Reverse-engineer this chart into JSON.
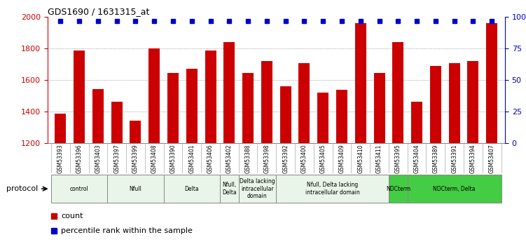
{
  "title": "GDS1690 / 1631315_at",
  "samples": [
    "GSM53393",
    "GSM53396",
    "GSM53403",
    "GSM53397",
    "GSM53399",
    "GSM53408",
    "GSM53390",
    "GSM53401",
    "GSM53406",
    "GSM53402",
    "GSM53388",
    "GSM53398",
    "GSM53392",
    "GSM53400",
    "GSM53405",
    "GSM53409",
    "GSM53410",
    "GSM53411",
    "GSM53395",
    "GSM53404",
    "GSM53389",
    "GSM53391",
    "GSM53394",
    "GSM53407"
  ],
  "counts": [
    1385,
    1785,
    1540,
    1460,
    1340,
    1800,
    1645,
    1670,
    1785,
    1840,
    1645,
    1720,
    1560,
    1705,
    1520,
    1535,
    1960,
    1645,
    1840,
    1460,
    1690,
    1705,
    1720,
    1960
  ],
  "percentile": [
    97,
    97,
    97,
    97,
    97,
    97,
    97,
    97,
    97,
    97,
    97,
    97,
    97,
    97,
    97,
    97,
    97,
    97,
    97,
    97,
    97,
    97,
    97,
    97
  ],
  "bar_color": "#cc0000",
  "dot_color": "#0000cc",
  "ylim_left": [
    1200,
    2000
  ],
  "yticks_left": [
    1200,
    1400,
    1600,
    1800,
    2000
  ],
  "yticks_right": [
    0,
    25,
    50,
    75,
    100
  ],
  "ytick_labels_right": [
    "0",
    "25",
    "50",
    "75",
    "100%"
  ],
  "grid_yticks": [
    1400,
    1600,
    1800
  ],
  "grid_color": "#888888",
  "protocols": [
    {
      "label": "control",
      "start": 0,
      "end": 2,
      "color": "#e8f5e8"
    },
    {
      "label": "Nfull",
      "start": 3,
      "end": 5,
      "color": "#e8f5e8"
    },
    {
      "label": "Delta",
      "start": 6,
      "end": 8,
      "color": "#e8f5e8"
    },
    {
      "label": "Nfull,\nDelta",
      "start": 9,
      "end": 9,
      "color": "#e8f5e8"
    },
    {
      "label": "Delta lacking\nintracellular\ndomain",
      "start": 10,
      "end": 11,
      "color": "#e8f5e8"
    },
    {
      "label": "Nfull, Delta lacking\nintracellular domain",
      "start": 12,
      "end": 17,
      "color": "#e8f5e8"
    },
    {
      "label": "NDCterm",
      "start": 18,
      "end": 18,
      "color": "#44cc44"
    },
    {
      "label": "NDCterm, Delta",
      "start": 19,
      "end": 23,
      "color": "#44cc44"
    }
  ],
  "bg_color": "#ffffff",
  "sample_area_color": "#d0d0d0",
  "left_axis_color": "#cc0000",
  "right_axis_color": "#0000cc"
}
